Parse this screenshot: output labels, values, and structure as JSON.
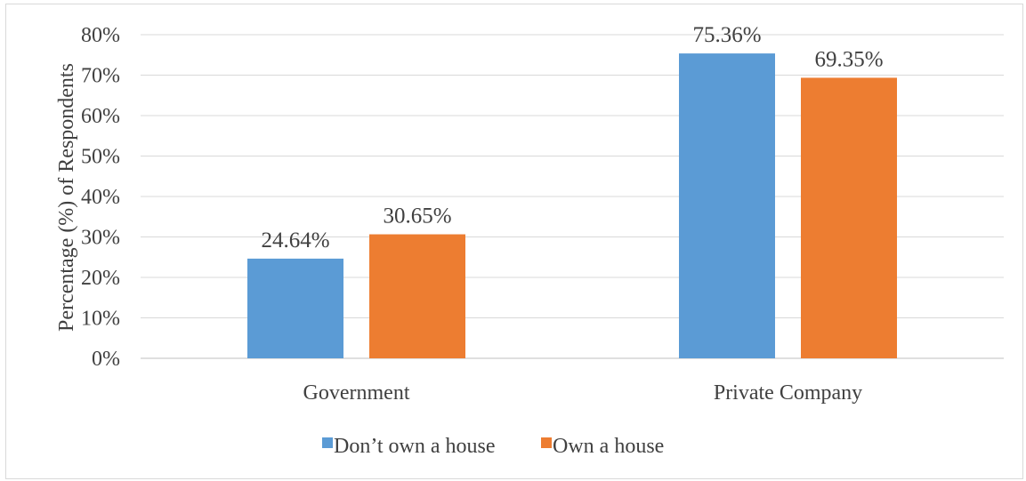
{
  "chart_data": {
    "type": "bar",
    "categories": [
      "Government",
      "Private Company"
    ],
    "series": [
      {
        "name": "Don’t own a house",
        "values": [
          24.64,
          75.36
        ],
        "labels": [
          "24.64%",
          "75.36%"
        ],
        "color": "#5b9bd5"
      },
      {
        "name": "Own a house",
        "values": [
          30.65,
          69.35
        ],
        "labels": [
          "30.65%",
          "69.35%"
        ],
        "color": "#ed7d31"
      }
    ],
    "ylabel": "Percentage (%) of Respondents",
    "ylim": [
      0,
      80
    ],
    "yticks": [
      0,
      10,
      20,
      30,
      40,
      50,
      60,
      70,
      80
    ],
    "ytick_labels": [
      "0%",
      "10%",
      "20%",
      "30%",
      "40%",
      "50%",
      "60%",
      "70%",
      "80%"
    ],
    "grid": true,
    "legend_position": "bottom"
  }
}
